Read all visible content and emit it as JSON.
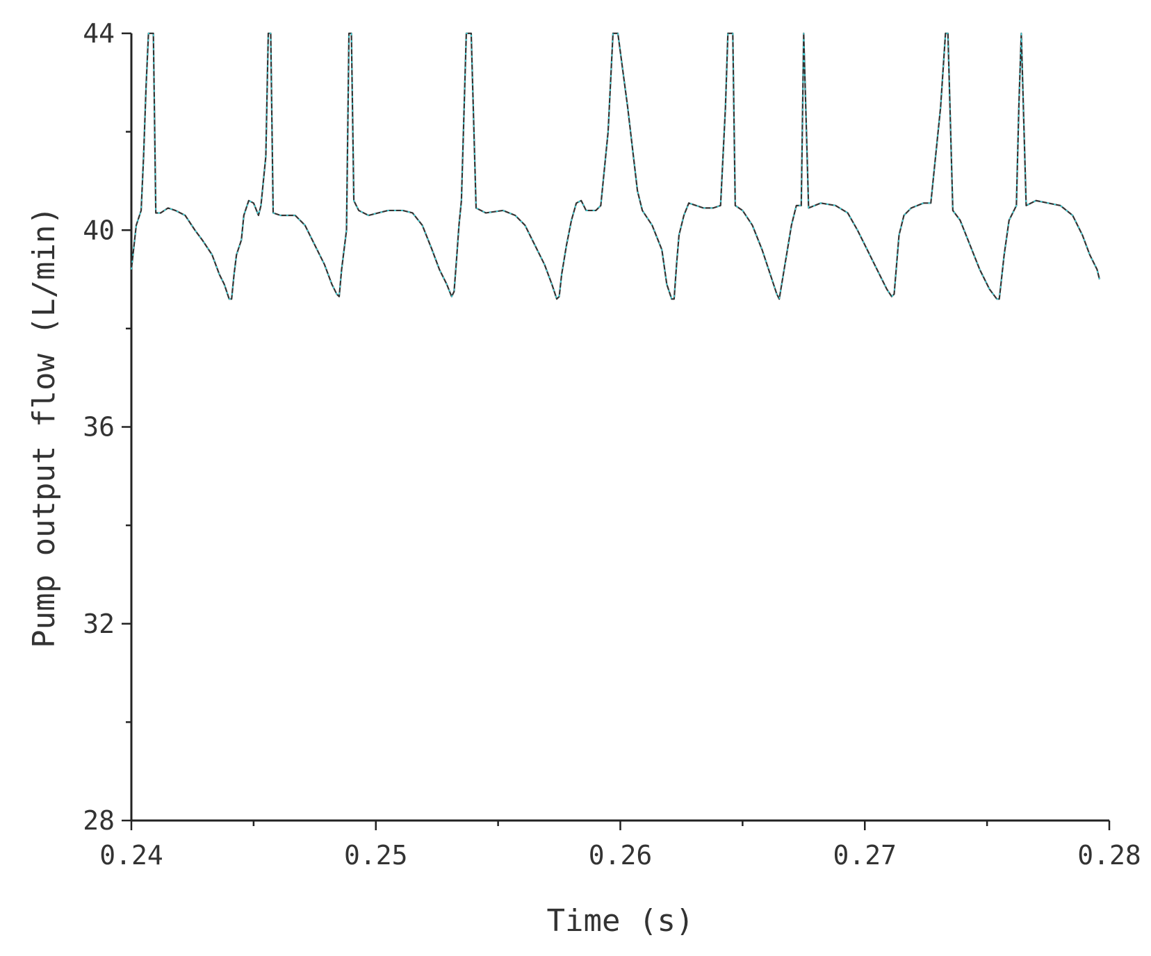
{
  "chart_data": {
    "type": "line",
    "title": "",
    "xlabel": "Time (s)",
    "ylabel": "Pump output flow (L/min)",
    "xlim": [
      0.24,
      0.28
    ],
    "ylim": [
      28,
      44
    ],
    "x_ticks": [
      {
        "value": 0.24,
        "label": "0.24"
      },
      {
        "value": 0.25,
        "label": "0.25"
      },
      {
        "value": 0.26,
        "label": "0.26"
      },
      {
        "value": 0.27,
        "label": "0.27"
      },
      {
        "value": 0.28,
        "label": "0.28"
      }
    ],
    "y_ticks": [
      {
        "value": 28,
        "label": "28"
      },
      {
        "value": 32,
        "label": "32"
      },
      {
        "value": 36,
        "label": "36"
      },
      {
        "value": 40,
        "label": "40"
      },
      {
        "value": 44,
        "label": "44"
      }
    ],
    "grid": false,
    "legend": "none",
    "series": [
      {
        "color": "#333333",
        "marker_color": "#40e0e8",
        "points": [
          [
            0.24,
            39.2
          ],
          [
            0.2402,
            40.1
          ],
          [
            0.2404,
            40.4
          ],
          [
            0.2405,
            41.5
          ],
          [
            0.2406,
            42.9
          ],
          [
            0.2407,
            44.0
          ],
          [
            0.2409,
            44.0
          ],
          [
            0.241,
            40.35
          ],
          [
            0.2412,
            40.35
          ],
          [
            0.2415,
            40.45
          ],
          [
            0.2418,
            40.4
          ],
          [
            0.2422,
            40.3
          ],
          [
            0.2426,
            40.0
          ],
          [
            0.2429,
            39.8
          ],
          [
            0.2433,
            39.5
          ],
          [
            0.2436,
            39.1
          ],
          [
            0.2438,
            38.9
          ],
          [
            0.244,
            38.6
          ],
          [
            0.2441,
            38.6
          ],
          [
            0.2442,
            39.1
          ],
          [
            0.2443,
            39.5
          ],
          [
            0.2445,
            39.8
          ],
          [
            0.2446,
            40.3
          ],
          [
            0.2448,
            40.6
          ],
          [
            0.245,
            40.55
          ],
          [
            0.2452,
            40.3
          ],
          [
            0.2453,
            40.5
          ],
          [
            0.2455,
            41.5
          ],
          [
            0.2456,
            44.0
          ],
          [
            0.2457,
            44.0
          ],
          [
            0.2458,
            40.35
          ],
          [
            0.2461,
            40.3
          ],
          [
            0.2467,
            40.3
          ],
          [
            0.2471,
            40.1
          ],
          [
            0.2475,
            39.7
          ],
          [
            0.2479,
            39.3
          ],
          [
            0.2482,
            38.9
          ],
          [
            0.2484,
            38.7
          ],
          [
            0.2485,
            38.65
          ],
          [
            0.2486,
            39.2
          ],
          [
            0.2487,
            39.6
          ],
          [
            0.2488,
            40.0
          ],
          [
            0.2489,
            44.0
          ],
          [
            0.249,
            44.0
          ],
          [
            0.2491,
            40.6
          ],
          [
            0.2493,
            40.4
          ],
          [
            0.2497,
            40.3
          ],
          [
            0.2501,
            40.35
          ],
          [
            0.2505,
            40.4
          ],
          [
            0.2511,
            40.4
          ],
          [
            0.2515,
            40.35
          ],
          [
            0.2519,
            40.1
          ],
          [
            0.2523,
            39.6
          ],
          [
            0.2526,
            39.2
          ],
          [
            0.2529,
            38.9
          ],
          [
            0.2531,
            38.65
          ],
          [
            0.2532,
            38.75
          ],
          [
            0.2533,
            39.4
          ],
          [
            0.2534,
            40.1
          ],
          [
            0.2535,
            40.6
          ],
          [
            0.2537,
            44.0
          ],
          [
            0.2539,
            44.0
          ],
          [
            0.2541,
            40.45
          ],
          [
            0.2545,
            40.35
          ],
          [
            0.2552,
            40.4
          ],
          [
            0.2557,
            40.3
          ],
          [
            0.2561,
            40.1
          ],
          [
            0.2565,
            39.7
          ],
          [
            0.2569,
            39.3
          ],
          [
            0.2572,
            38.9
          ],
          [
            0.2574,
            38.6
          ],
          [
            0.2575,
            38.65
          ],
          [
            0.2576,
            39.1
          ],
          [
            0.2578,
            39.7
          ],
          [
            0.258,
            40.2
          ],
          [
            0.2582,
            40.55
          ],
          [
            0.2584,
            40.6
          ],
          [
            0.2586,
            40.4
          ],
          [
            0.259,
            40.4
          ],
          [
            0.2592,
            40.5
          ],
          [
            0.2595,
            42.0
          ],
          [
            0.2597,
            44.0
          ],
          [
            0.2599,
            44.0
          ],
          [
            0.2603,
            42.5
          ],
          [
            0.2607,
            40.8
          ],
          [
            0.2609,
            40.4
          ],
          [
            0.2613,
            40.1
          ],
          [
            0.2617,
            39.6
          ],
          [
            0.2619,
            38.9
          ],
          [
            0.2621,
            38.6
          ],
          [
            0.2622,
            38.6
          ],
          [
            0.2623,
            39.3
          ],
          [
            0.2624,
            39.9
          ],
          [
            0.2626,
            40.3
          ],
          [
            0.2628,
            40.55
          ],
          [
            0.2631,
            40.5
          ],
          [
            0.2634,
            40.45
          ],
          [
            0.2638,
            40.45
          ],
          [
            0.2641,
            40.5
          ],
          [
            0.2643,
            42.5
          ],
          [
            0.2644,
            44.0
          ],
          [
            0.2646,
            44.0
          ],
          [
            0.2647,
            40.5
          ],
          [
            0.265,
            40.4
          ],
          [
            0.2654,
            40.1
          ],
          [
            0.2658,
            39.6
          ],
          [
            0.2662,
            39.0
          ],
          [
            0.2664,
            38.7
          ],
          [
            0.2665,
            38.6
          ],
          [
            0.2666,
            38.9
          ],
          [
            0.2668,
            39.5
          ],
          [
            0.267,
            40.1
          ],
          [
            0.2672,
            40.5
          ],
          [
            0.2674,
            40.5
          ],
          [
            0.2675,
            44.0
          ],
          [
            0.2677,
            40.45
          ],
          [
            0.2682,
            40.55
          ],
          [
            0.2688,
            40.5
          ],
          [
            0.2693,
            40.35
          ],
          [
            0.2697,
            40.0
          ],
          [
            0.2702,
            39.5
          ],
          [
            0.2706,
            39.1
          ],
          [
            0.2709,
            38.8
          ],
          [
            0.2711,
            38.65
          ],
          [
            0.2712,
            38.7
          ],
          [
            0.2713,
            39.3
          ],
          [
            0.2714,
            39.9
          ],
          [
            0.2716,
            40.3
          ],
          [
            0.2719,
            40.45
          ],
          [
            0.2724,
            40.55
          ],
          [
            0.2727,
            40.55
          ],
          [
            0.2731,
            42.5
          ],
          [
            0.2733,
            44.0
          ],
          [
            0.2734,
            44.0
          ],
          [
            0.2736,
            40.4
          ],
          [
            0.2739,
            40.2
          ],
          [
            0.2743,
            39.7
          ],
          [
            0.2747,
            39.2
          ],
          [
            0.2751,
            38.8
          ],
          [
            0.2754,
            38.6
          ],
          [
            0.2755,
            38.6
          ],
          [
            0.2757,
            39.5
          ],
          [
            0.2759,
            40.2
          ],
          [
            0.2762,
            40.5
          ],
          [
            0.2763,
            42.5
          ],
          [
            0.2764,
            44.0
          ],
          [
            0.2766,
            40.5
          ],
          [
            0.277,
            40.6
          ],
          [
            0.2775,
            40.55
          ],
          [
            0.278,
            40.5
          ],
          [
            0.2785,
            40.3
          ],
          [
            0.2789,
            39.9
          ],
          [
            0.2792,
            39.5
          ],
          [
            0.2795,
            39.2
          ],
          [
            0.2796,
            39.0
          ]
        ]
      }
    ]
  }
}
